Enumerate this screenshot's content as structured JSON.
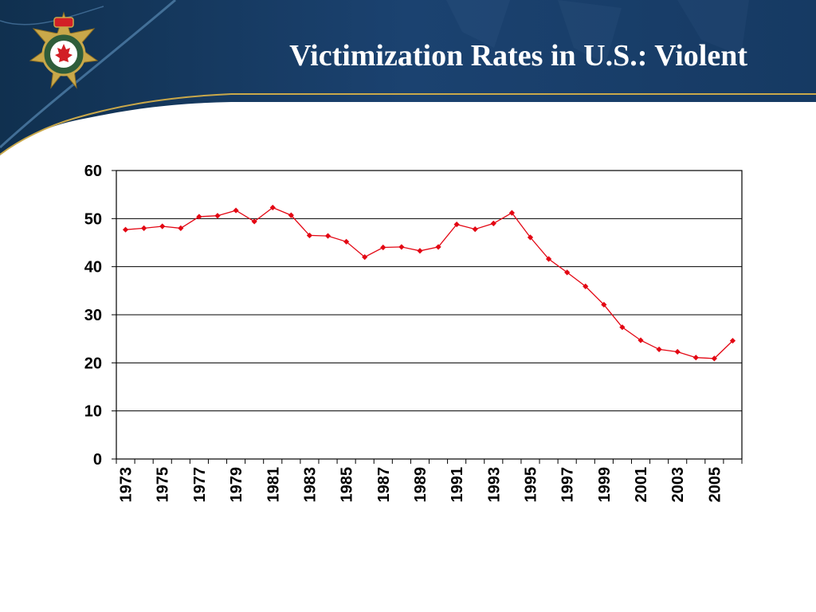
{
  "slide": {
    "title": "Victimization Rates in U.S.: Violent",
    "logo_icon": "correctional-service-canada-badge",
    "colors": {
      "banner": "#16385f",
      "accent": "#c9a84a",
      "line": "#e30613"
    }
  },
  "chart_data": {
    "type": "line",
    "title": "",
    "xlabel": "",
    "ylabel": "",
    "x": [
      1973,
      1974,
      1975,
      1976,
      1977,
      1978,
      1979,
      1980,
      1981,
      1982,
      1983,
      1984,
      1985,
      1986,
      1987,
      1988,
      1989,
      1990,
      1991,
      1992,
      1993,
      1994,
      1995,
      1996,
      1997,
      1998,
      1999,
      2000,
      2001,
      2002,
      2003,
      2004,
      2005,
      2006
    ],
    "xtick_labels": [
      "1973",
      "1975",
      "1977",
      "1979",
      "1981",
      "1983",
      "1985",
      "1987",
      "1989",
      "1991",
      "1993",
      "1995",
      "1997",
      "1999",
      "2001",
      "2003",
      "2005"
    ],
    "y_tick_labels": [
      "0",
      "10",
      "20",
      "30",
      "40",
      "50",
      "60"
    ],
    "ylim": [
      0,
      60
    ],
    "yticks": [
      0,
      10,
      20,
      30,
      40,
      50,
      60
    ],
    "grid": "horizontal",
    "legend": "none",
    "series": [
      {
        "color": "#e30613",
        "values": [
          47.7,
          48.0,
          48.4,
          48.0,
          50.4,
          50.6,
          51.7,
          49.4,
          52.3,
          50.7,
          46.5,
          46.4,
          45.2,
          42.0,
          44.0,
          44.1,
          43.3,
          44.1,
          48.8,
          47.8,
          49.0,
          51.2,
          46.1,
          41.6,
          38.8,
          35.9,
          32.1,
          27.4,
          24.7,
          22.8,
          22.3,
          21.1,
          20.9,
          24.6
        ]
      }
    ]
  }
}
